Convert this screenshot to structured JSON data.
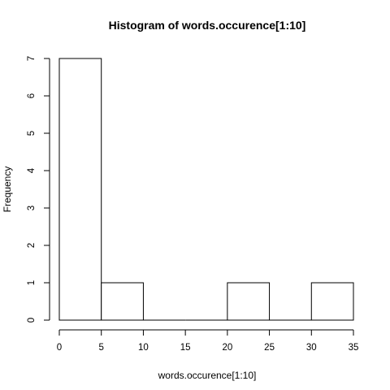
{
  "chart_data": {
    "type": "bar",
    "title": "Histogram of words.occurence[1:10]",
    "xlabel": "words.occurence[1:10]",
    "ylabel": "Frequency",
    "bins": [
      {
        "from": 0,
        "to": 5,
        "count": 7
      },
      {
        "from": 5,
        "to": 10,
        "count": 1
      },
      {
        "from": 10,
        "to": 15,
        "count": 0
      },
      {
        "from": 15,
        "to": 20,
        "count": 0
      },
      {
        "from": 20,
        "to": 25,
        "count": 1
      },
      {
        "from": 25,
        "to": 30,
        "count": 0
      },
      {
        "from": 30,
        "to": 35,
        "count": 1
      }
    ],
    "xlim": [
      0,
      35
    ],
    "ylim": [
      0,
      7
    ],
    "x_ticks": [
      "0",
      "5",
      "10",
      "15",
      "20",
      "25",
      "30",
      "35"
    ],
    "y_ticks": [
      "0",
      "1",
      "2",
      "3",
      "4",
      "5",
      "6",
      "7"
    ],
    "grid": false,
    "bar_fill": "#ffffff",
    "bar_stroke": "#000000"
  }
}
